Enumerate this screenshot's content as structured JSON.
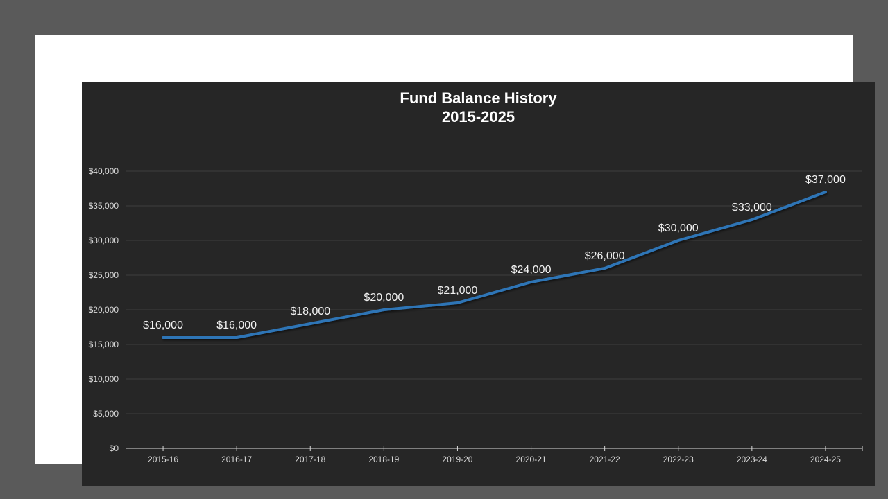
{
  "chart_data": {
    "type": "line",
    "title": "Fund Balance History",
    "subtitle": "2015-2025",
    "xlabel": "",
    "ylabel": "",
    "categories": [
      "2015-16",
      "2016-17",
      "2017-18",
      "2018-19",
      "2019-20",
      "2020-21",
      "2021-22",
      "2022-23",
      "2023-24",
      "2024-25"
    ],
    "series": [
      {
        "name": "Fund Balance",
        "values": [
          16000,
          16000,
          18000,
          20000,
          21000,
          24000,
          26000,
          30000,
          33000,
          37000
        ],
        "labels": [
          "$16,000",
          "$16,000",
          "$18,000",
          "$20,000",
          "$21,000",
          "$24,000",
          "$26,000",
          "$30,000",
          "$33,000",
          "$37,000"
        ],
        "color": "#2e75b6"
      }
    ],
    "ylim": [
      0,
      40000
    ],
    "yticks": [
      0,
      5000,
      10000,
      15000,
      20000,
      25000,
      30000,
      35000,
      40000
    ],
    "ytick_labels": [
      "$0",
      "$5,000",
      "$10,000",
      "$15,000",
      "$20,000",
      "$25,000",
      "$30,000",
      "$35,000",
      "$40,000"
    ],
    "grid": true,
    "legend": "none",
    "data_labels": true
  },
  "colors": {
    "page_background": "#5a5a5a",
    "frame": "#ffffff",
    "chart_background": "#262626",
    "gridline": "#3f3f3f",
    "axis": "#d9d9d9",
    "text": "#ffffff"
  }
}
